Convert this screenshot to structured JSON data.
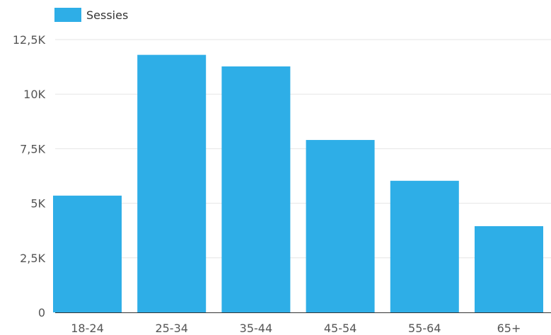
{
  "chart_data": {
    "type": "bar",
    "categories": [
      "18-24",
      "25-34",
      "35-44",
      "45-54",
      "55-64",
      "65+"
    ],
    "series": [
      {
        "name": "Sessies",
        "values": [
          5350,
          11800,
          11270,
          7900,
          6030,
          3950
        ]
      }
    ],
    "ylim": [
      0,
      12500
    ],
    "yticks": [
      0,
      2500,
      5000,
      7500,
      10000,
      12500
    ],
    "ytick_labels": [
      "0",
      "2,5K",
      "5K",
      "7,5K",
      "10K",
      "12,5K"
    ],
    "grid": true,
    "legend": "top-left",
    "colors": {
      "bar": "#2eaee7",
      "grid": "#e6e6e6",
      "axis": "#333333",
      "text": "#555555"
    }
  }
}
